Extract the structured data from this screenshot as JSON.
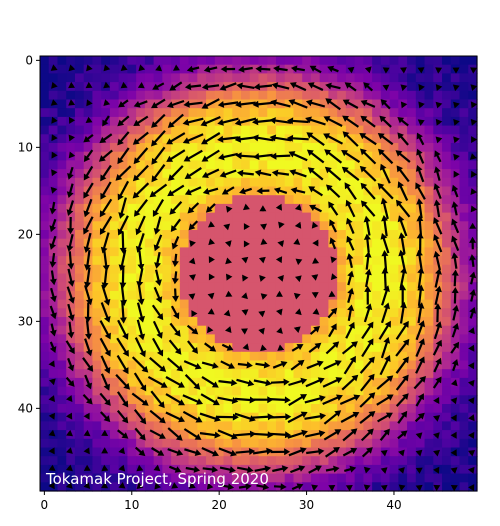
{
  "chart_data": {
    "type": "heatmap",
    "title": "",
    "xlabel": "",
    "ylabel": "",
    "annotation": "Tokamak Project, Spring 2020",
    "grid_size": [
      50,
      50
    ],
    "xlim": [
      -0.5,
      49.5
    ],
    "ylim": [
      49.5,
      -0.5
    ],
    "x_ticks": [
      0,
      10,
      20,
      30,
      40
    ],
    "y_ticks": [
      0,
      10,
      20,
      30,
      40
    ],
    "colormap": "plasma",
    "center": [
      24.5,
      24.5
    ],
    "field": {
      "description_values": "value vs radius from center (grid units)",
      "radius_profile": [
        [
          0,
          0.55
        ],
        [
          9,
          0.55
        ],
        [
          9.01,
          0.8
        ],
        [
          12,
          0.97
        ],
        [
          15,
          1.0
        ],
        [
          19,
          0.85
        ],
        [
          22,
          0.55
        ],
        [
          25,
          0.25
        ],
        [
          28,
          0.08
        ],
        [
          35,
          0.0
        ]
      ]
    },
    "quiver": {
      "spacing": 2,
      "direction": "counterclockwise rotation around center",
      "color": "#000000"
    },
    "colors": {
      "low": "#0d0887",
      "mid": "#cc4778",
      "high": "#f0f921",
      "arrow": "#000000"
    }
  }
}
